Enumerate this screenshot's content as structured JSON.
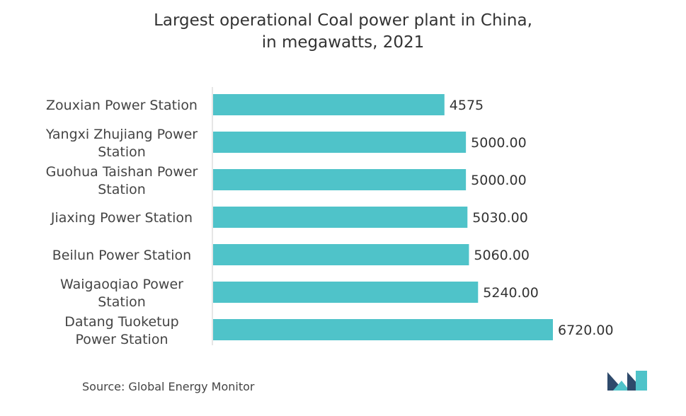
{
  "chart_data": {
    "type": "bar",
    "orientation": "horizontal",
    "title_line1": "Largest operational Coal power plant in China,",
    "title_line2": "in megawatts, 2021",
    "categories": [
      [
        "Zouxian Power Station"
      ],
      [
        "Yangxi Zhujiang Power",
        "Station"
      ],
      [
        "Guohua Taishan Power",
        "Station"
      ],
      [
        "Jiaxing Power Station"
      ],
      [
        "Beilun Power Station"
      ],
      [
        "Waigaoqiao Power",
        "Station"
      ],
      [
        "Datang Tuoketup",
        "Power Station"
      ]
    ],
    "values": [
      4575,
      5000,
      5000,
      5030,
      5060,
      5240,
      6720
    ],
    "value_labels": [
      "4575",
      "5000.00",
      "5000.00",
      "5030.00",
      "5060.00",
      "5240.00",
      "6720.00"
    ],
    "xlim": [
      0,
      6720
    ],
    "xlabel": "",
    "ylabel": "",
    "grid": false,
    "bar_color": "#4fc3c9",
    "axis_color": "#cccccc"
  },
  "footer": {
    "source": "Source: Global Energy Monitor"
  },
  "colors": {
    "logo_dark": "#2e4a6b",
    "logo_teal": "#4fc3c9"
  }
}
